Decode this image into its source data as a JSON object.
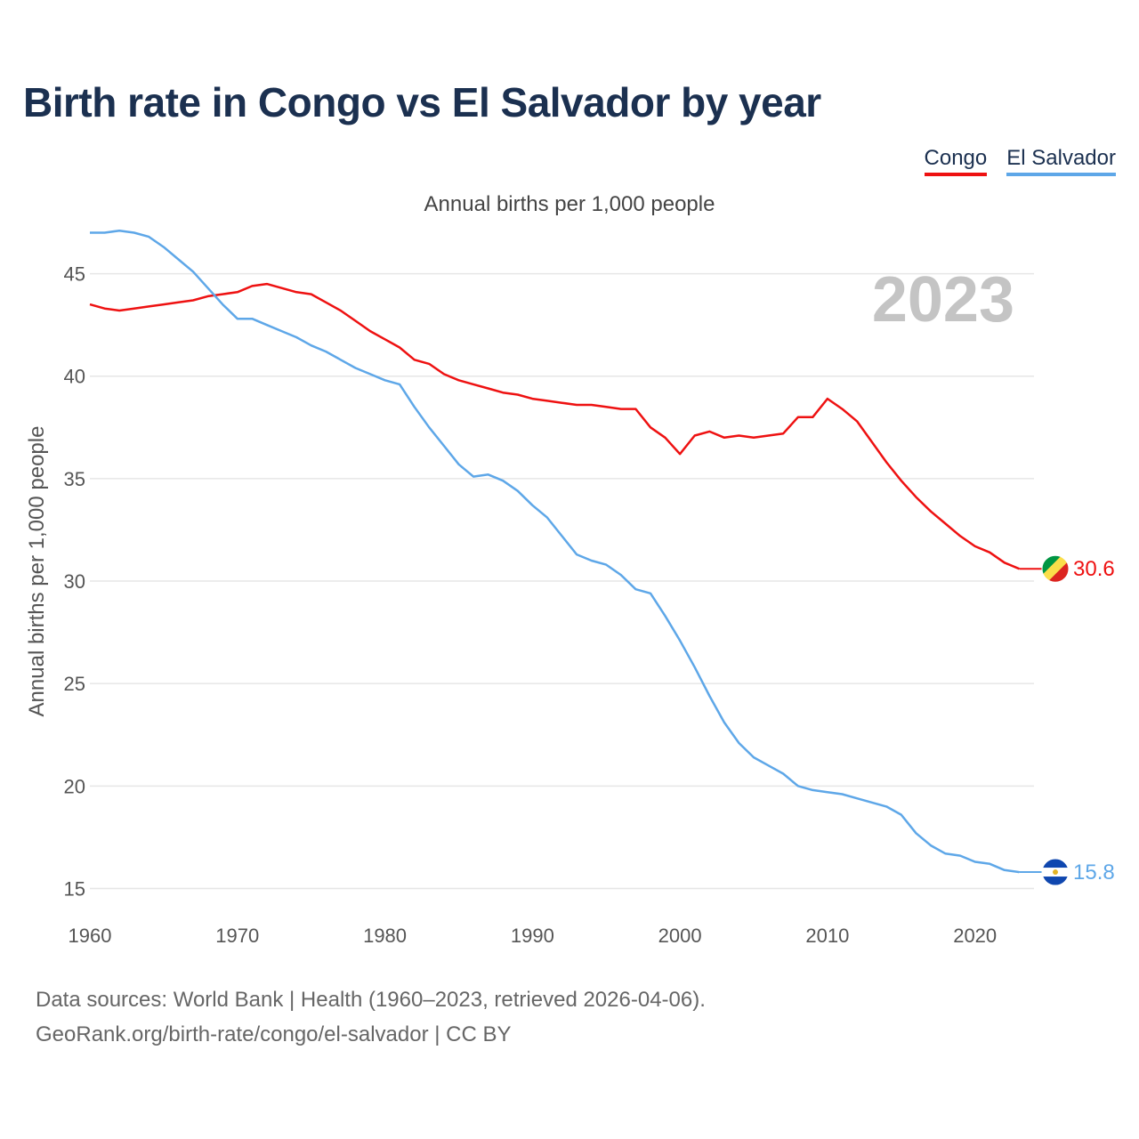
{
  "title": "Birth rate in Congo vs El Salvador by year",
  "subtitle": "Annual births per 1,000 people",
  "footer": {
    "line1": "Data sources: World Bank | Health (1960–2023, retrieved 2026-04-06).",
    "line2": "GeoRank.org/birth-rate/congo/el-salvador | CC BY"
  },
  "chart_data": {
    "type": "line",
    "title": "Birth rate in Congo vs El Salvador by year",
    "subtitle": "Annual births per 1,000 people",
    "xlabel": "",
    "ylabel": "Annual births per 1,000 people",
    "xlim": [
      1960,
      2024
    ],
    "ylim": [
      14.5,
      47.5
    ],
    "xticks": [
      1960,
      1970,
      1980,
      1990,
      2000,
      2010,
      2020
    ],
    "yticks": [
      15,
      20,
      25,
      30,
      35,
      40,
      45
    ],
    "grid": true,
    "legend_position": "top-right",
    "year_watermark": "2023",
    "x": [
      1960,
      1961,
      1962,
      1963,
      1964,
      1965,
      1966,
      1967,
      1968,
      1969,
      1970,
      1971,
      1972,
      1973,
      1974,
      1975,
      1976,
      1977,
      1978,
      1979,
      1980,
      1981,
      1982,
      1983,
      1984,
      1985,
      1986,
      1987,
      1988,
      1989,
      1990,
      1991,
      1992,
      1993,
      1994,
      1995,
      1996,
      1997,
      1998,
      1999,
      2000,
      2001,
      2002,
      2003,
      2004,
      2005,
      2006,
      2007,
      2008,
      2009,
      2010,
      2011,
      2012,
      2013,
      2014,
      2015,
      2016,
      2017,
      2018,
      2019,
      2020,
      2021,
      2022,
      2023
    ],
    "series": [
      {
        "name": "Congo",
        "color": "#ee1111",
        "end_label": "30.6",
        "flag": "congo-flag",
        "values": [
          43.5,
          43.3,
          43.2,
          43.3,
          43.4,
          43.5,
          43.6,
          43.7,
          43.9,
          44.0,
          44.1,
          44.4,
          44.5,
          44.3,
          44.1,
          44.0,
          43.6,
          43.2,
          42.7,
          42.2,
          41.8,
          41.4,
          40.8,
          40.6,
          40.1,
          39.8,
          39.6,
          39.4,
          39.2,
          39.1,
          38.9,
          38.8,
          38.7,
          38.6,
          38.6,
          38.5,
          38.4,
          38.4,
          37.5,
          37.0,
          36.2,
          37.1,
          37.3,
          37.0,
          37.1,
          37.0,
          37.1,
          37.2,
          38.0,
          38.0,
          38.9,
          38.4,
          37.8,
          36.8,
          35.8,
          34.9,
          34.1,
          33.4,
          32.8,
          32.2,
          31.7,
          31.4,
          30.9,
          30.6
        ]
      },
      {
        "name": "El Salvador",
        "color": "#5ea7e8",
        "end_label": "15.8",
        "flag": "el-salvador-flag",
        "values": [
          47.0,
          47.0,
          47.1,
          47.0,
          46.8,
          46.3,
          45.7,
          45.1,
          44.3,
          43.5,
          42.8,
          42.8,
          42.5,
          42.2,
          41.9,
          41.5,
          41.2,
          40.8,
          40.4,
          40.1,
          39.8,
          39.6,
          38.5,
          37.5,
          36.6,
          35.7,
          35.1,
          35.2,
          34.9,
          34.4,
          33.7,
          33.1,
          32.2,
          31.3,
          31.0,
          30.8,
          30.3,
          29.6,
          29.4,
          28.3,
          27.1,
          25.8,
          24.4,
          23.1,
          22.1,
          21.4,
          21.0,
          20.6,
          20.0,
          19.8,
          19.7,
          19.6,
          19.4,
          19.2,
          19.0,
          18.6,
          17.7,
          17.1,
          16.7,
          16.6,
          16.3,
          16.2,
          15.9,
          15.8
        ]
      }
    ]
  }
}
